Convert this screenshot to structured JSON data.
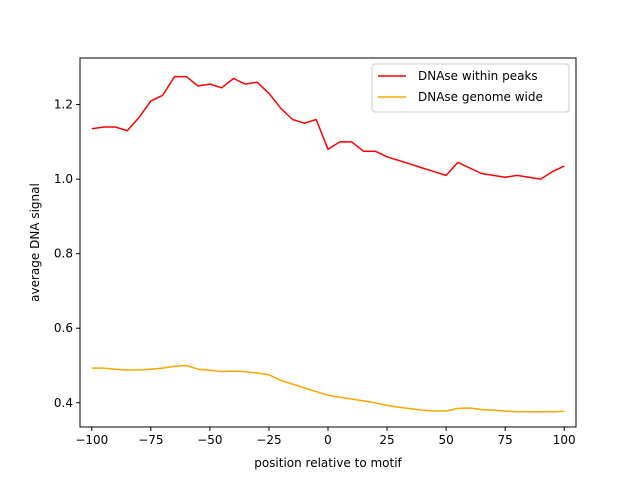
{
  "chart_data": {
    "type": "line",
    "title": "",
    "xlabel": "position relative to motif",
    "ylabel": "average DNA signal",
    "xlim": [
      -105,
      105
    ],
    "ylim": [
      0.335,
      1.325
    ],
    "xticks": [
      -100,
      -75,
      -50,
      -25,
      0,
      25,
      50,
      75,
      100
    ],
    "xtick_labels": [
      "−100",
      "−75",
      "−50",
      "−25",
      "0",
      "25",
      "50",
      "75",
      "100"
    ],
    "yticks": [
      0.4,
      0.6,
      0.8,
      1.0,
      1.2
    ],
    "ytick_labels": [
      "0.4",
      "0.6",
      "0.8",
      "1.0",
      "1.2"
    ],
    "grid": false,
    "legend_position": "upper right",
    "x": [
      -100,
      -95,
      -90,
      -85,
      -80,
      -75,
      -70,
      -65,
      -60,
      -55,
      -50,
      -45,
      -40,
      -35,
      -30,
      -25,
      -20,
      -15,
      -10,
      -5,
      0,
      5,
      10,
      15,
      20,
      25,
      30,
      35,
      40,
      45,
      50,
      55,
      60,
      65,
      70,
      75,
      80,
      85,
      90,
      95,
      100
    ],
    "series": [
      {
        "name": "DNAse within peaks",
        "color": "#ff0000",
        "values": [
          1.135,
          1.14,
          1.14,
          1.13,
          1.165,
          1.21,
          1.225,
          1.275,
          1.275,
          1.25,
          1.255,
          1.245,
          1.27,
          1.255,
          1.26,
          1.23,
          1.19,
          1.16,
          1.15,
          1.16,
          1.08,
          1.1,
          1.1,
          1.075,
          1.075,
          1.06,
          1.05,
          1.04,
          1.03,
          1.02,
          1.01,
          1.045,
          1.03,
          1.015,
          1.01,
          1.005,
          1.01,
          1.005,
          1.0,
          1.02,
          1.035
        ]
      },
      {
        "name": "DNAse genome wide",
        "color": "#ffa500",
        "values": [
          0.493,
          0.493,
          0.49,
          0.488,
          0.488,
          0.49,
          0.493,
          0.498,
          0.5,
          0.49,
          0.487,
          0.484,
          0.485,
          0.483,
          0.48,
          0.475,
          0.46,
          0.45,
          0.44,
          0.43,
          0.42,
          0.415,
          0.41,
          0.405,
          0.4,
          0.393,
          0.388,
          0.384,
          0.38,
          0.378,
          0.378,
          0.385,
          0.386,
          0.382,
          0.38,
          0.378,
          0.376,
          0.376,
          0.376,
          0.376,
          0.377
        ]
      }
    ]
  }
}
